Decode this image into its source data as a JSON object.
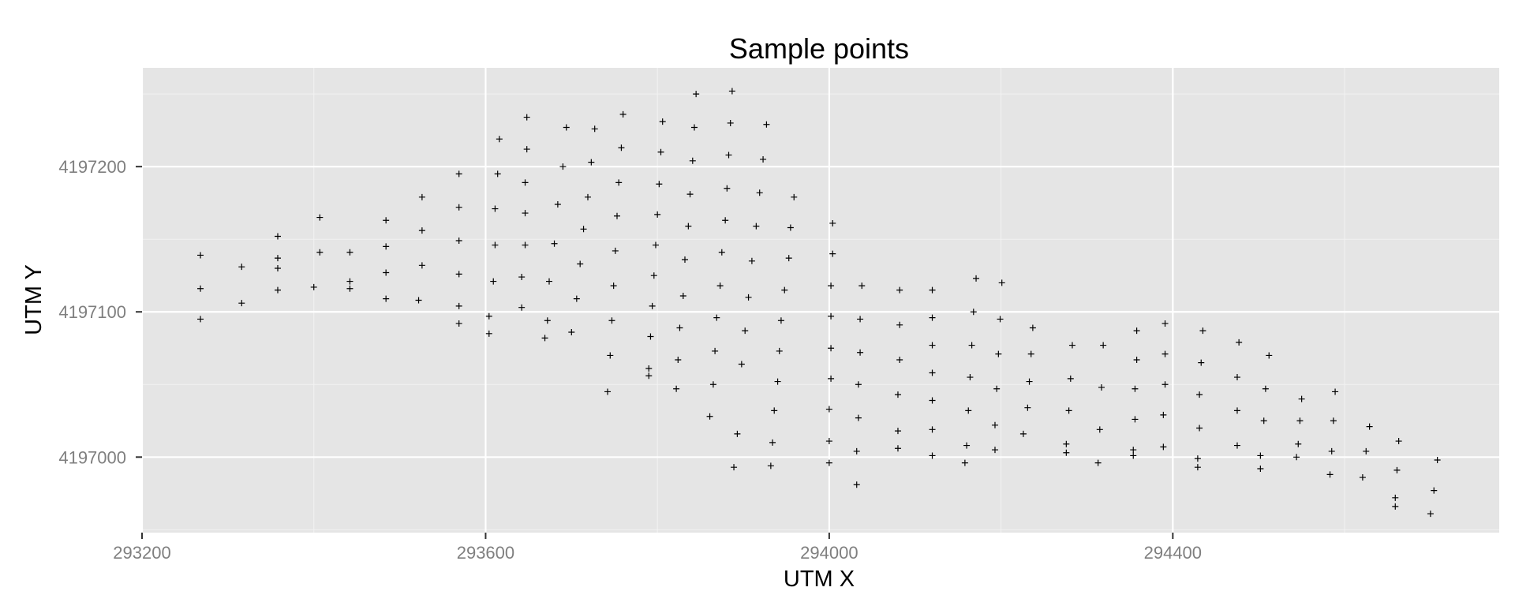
{
  "chart_data": {
    "type": "scatter",
    "title": "Sample points",
    "xlabel": "UTM X",
    "ylabel": "UTM Y",
    "xlim": [
      293200,
      294780
    ],
    "ylim": [
      4196948,
      4197268
    ],
    "x_ticks": [
      293200,
      293600,
      294000,
      294400
    ],
    "x_tick_labels": [
      "293200",
      "293600",
      "294000",
      "294400"
    ],
    "y_ticks": [
      4197000,
      4197100,
      4197200
    ],
    "y_tick_labels": [
      "4197000",
      "4197100",
      "4197200"
    ],
    "grid": true,
    "legend": "none",
    "marker": "plus",
    "colors": {
      "panel": "#e5e5e5",
      "grid_major": "#ffffff",
      "grid_minor": "#f2f2f2",
      "point": "#000000",
      "tick_label": "#7f7f7f"
    },
    "points": [
      [
        293268,
        4197139
      ],
      [
        293268,
        4197116
      ],
      [
        293268,
        4197095
      ],
      [
        293316,
        4197131
      ],
      [
        293316,
        4197106
      ],
      [
        293358,
        4197152
      ],
      [
        293358,
        4197137
      ],
      [
        293358,
        4197130
      ],
      [
        293358,
        4197115
      ],
      [
        293400,
        4197117
      ],
      [
        293407,
        4197165
      ],
      [
        293407,
        4197141
      ],
      [
        293442,
        4197141
      ],
      [
        293442,
        4197121
      ],
      [
        293442,
        4197116
      ],
      [
        293484,
        4197163
      ],
      [
        293484,
        4197145
      ],
      [
        293484,
        4197127
      ],
      [
        293484,
        4197109
      ],
      [
        293522,
        4197108
      ],
      [
        293526,
        4197179
      ],
      [
        293526,
        4197156
      ],
      [
        293526,
        4197132
      ],
      [
        293569,
        4197195
      ],
      [
        293569,
        4197172
      ],
      [
        293569,
        4197149
      ],
      [
        293569,
        4197126
      ],
      [
        293569,
        4197104
      ],
      [
        293569,
        4197092
      ],
      [
        293604,
        4197097
      ],
      [
        293604,
        4197085
      ],
      [
        293609,
        4197121
      ],
      [
        293611,
        4197146
      ],
      [
        293611,
        4197171
      ],
      [
        293614,
        4197195
      ],
      [
        293616,
        4197219
      ],
      [
        293642,
        4197124
      ],
      [
        293642,
        4197103
      ],
      [
        293646,
        4197146
      ],
      [
        293646,
        4197168
      ],
      [
        293646,
        4197189
      ],
      [
        293648,
        4197212
      ],
      [
        293648,
        4197234
      ],
      [
        293669,
        4197082
      ],
      [
        293672,
        4197094
      ],
      [
        293674,
        4197121
      ],
      [
        293680,
        4197147
      ],
      [
        293684,
        4197174
      ],
      [
        293690,
        4197200
      ],
      [
        293694,
        4197227
      ],
      [
        293700,
        4197086
      ],
      [
        293706,
        4197109
      ],
      [
        293710,
        4197133
      ],
      [
        293714,
        4197157
      ],
      [
        293719,
        4197179
      ],
      [
        293723,
        4197203
      ],
      [
        293727,
        4197226
      ],
      [
        293742,
        4197045
      ],
      [
        293745,
        4197070
      ],
      [
        293747,
        4197094
      ],
      [
        293749,
        4197118
      ],
      [
        293751,
        4197142
      ],
      [
        293753,
        4197166
      ],
      [
        293755,
        4197189
      ],
      [
        293758,
        4197213
      ],
      [
        293760,
        4197236
      ],
      [
        293790,
        4197061
      ],
      [
        293790,
        4197056
      ],
      [
        293792,
        4197083
      ],
      [
        293794,
        4197104
      ],
      [
        293796,
        4197125
      ],
      [
        293798,
        4197146
      ],
      [
        293800,
        4197167
      ],
      [
        293802,
        4197188
      ],
      [
        293804,
        4197210
      ],
      [
        293806,
        4197231
      ],
      [
        293822,
        4197047
      ],
      [
        293824,
        4197067
      ],
      [
        293826,
        4197089
      ],
      [
        293830,
        4197111
      ],
      [
        293832,
        4197136
      ],
      [
        293836,
        4197159
      ],
      [
        293838,
        4197181
      ],
      [
        293841,
        4197204
      ],
      [
        293843,
        4197227
      ],
      [
        293845,
        4197250
      ],
      [
        293861,
        4197028
      ],
      [
        293865,
        4197050
      ],
      [
        293867,
        4197073
      ],
      [
        293869,
        4197096
      ],
      [
        293873,
        4197118
      ],
      [
        293875,
        4197141
      ],
      [
        293879,
        4197163
      ],
      [
        293881,
        4197185
      ],
      [
        293883,
        4197208
      ],
      [
        293885,
        4197230
      ],
      [
        293887,
        4197252
      ],
      [
        293889,
        4196993
      ],
      [
        293893,
        4197016
      ],
      [
        293898,
        4197064
      ],
      [
        293902,
        4197087
      ],
      [
        293906,
        4197110
      ],
      [
        293910,
        4197135
      ],
      [
        293915,
        4197159
      ],
      [
        293919,
        4197182
      ],
      [
        293923,
        4197205
      ],
      [
        293927,
        4197229
      ],
      [
        293932,
        4196994
      ],
      [
        293934,
        4197010
      ],
      [
        293936,
        4197032
      ],
      [
        293940,
        4197052
      ],
      [
        293942,
        4197073
      ],
      [
        293944,
        4197094
      ],
      [
        293948,
        4197115
      ],
      [
        293953,
        4197137
      ],
      [
        293955,
        4197158
      ],
      [
        293959,
        4197179
      ],
      [
        294000,
        4196996
      ],
      [
        294000,
        4197011
      ],
      [
        294000,
        4197033
      ],
      [
        294002,
        4197054
      ],
      [
        294002,
        4197075
      ],
      [
        294002,
        4197097
      ],
      [
        294002,
        4197118
      ],
      [
        294004,
        4197140
      ],
      [
        294004,
        4197161
      ],
      [
        294032,
        4196981
      ],
      [
        294032,
        4197004
      ],
      [
        294034,
        4197027
      ],
      [
        294034,
        4197050
      ],
      [
        294036,
        4197072
      ],
      [
        294036,
        4197095
      ],
      [
        294038,
        4197118
      ],
      [
        294080,
        4197006
      ],
      [
        294080,
        4197018
      ],
      [
        294080,
        4197043
      ],
      [
        294082,
        4197067
      ],
      [
        294082,
        4197091
      ],
      [
        294082,
        4197115
      ],
      [
        294120,
        4197001
      ],
      [
        294120,
        4197019
      ],
      [
        294120,
        4197039
      ],
      [
        294120,
        4197058
      ],
      [
        294120,
        4197077
      ],
      [
        294120,
        4197096
      ],
      [
        294120,
        4197115
      ],
      [
        294158,
        4196996
      ],
      [
        294160,
        4197008
      ],
      [
        294162,
        4197032
      ],
      [
        294164,
        4197055
      ],
      [
        294166,
        4197077
      ],
      [
        294168,
        4197100
      ],
      [
        294171,
        4197123
      ],
      [
        294193,
        4197005
      ],
      [
        294193,
        4197022
      ],
      [
        294195,
        4197047
      ],
      [
        294197,
        4197071
      ],
      [
        294199,
        4197095
      ],
      [
        294201,
        4197120
      ],
      [
        294226,
        4197016
      ],
      [
        294231,
        4197034
      ],
      [
        294233,
        4197052
      ],
      [
        294235,
        4197071
      ],
      [
        294237,
        4197089
      ],
      [
        294276,
        4197003
      ],
      [
        294276,
        4197009
      ],
      [
        294279,
        4197032
      ],
      [
        294281,
        4197054
      ],
      [
        294283,
        4197077
      ],
      [
        294313,
        4196996
      ],
      [
        294315,
        4197019
      ],
      [
        294317,
        4197048
      ],
      [
        294319,
        4197077
      ],
      [
        294354,
        4197001
      ],
      [
        294354,
        4197005
      ],
      [
        294356,
        4197026
      ],
      [
        294356,
        4197047
      ],
      [
        294358,
        4197067
      ],
      [
        294358,
        4197087
      ],
      [
        294389,
        4197007
      ],
      [
        294389,
        4197029
      ],
      [
        294391,
        4197050
      ],
      [
        294391,
        4197071
      ],
      [
        294391,
        4197092
      ],
      [
        294429,
        4196993
      ],
      [
        294429,
        4196999
      ],
      [
        294431,
        4197020
      ],
      [
        294431,
        4197043
      ],
      [
        294433,
        4197065
      ],
      [
        294435,
        4197087
      ],
      [
        294475,
        4197008
      ],
      [
        294475,
        4197032
      ],
      [
        294475,
        4197055
      ],
      [
        294477,
        4197079
      ],
      [
        294502,
        4196992
      ],
      [
        294502,
        4197001
      ],
      [
        294506,
        4197025
      ],
      [
        294508,
        4197047
      ],
      [
        294512,
        4197070
      ],
      [
        294544,
        4197000
      ],
      [
        294546,
        4197009
      ],
      [
        294548,
        4197025
      ],
      [
        294550,
        4197040
      ],
      [
        294583,
        4196988
      ],
      [
        294585,
        4197004
      ],
      [
        294587,
        4197025
      ],
      [
        294589,
        4197045
      ],
      [
        294621,
        4196986
      ],
      [
        294625,
        4197004
      ],
      [
        294629,
        4197021
      ],
      [
        294659,
        4196966
      ],
      [
        294659,
        4196972
      ],
      [
        294661,
        4196991
      ],
      [
        294663,
        4197011
      ],
      [
        294700,
        4196961
      ],
      [
        294704,
        4196977
      ],
      [
        294708,
        4196998
      ]
    ]
  }
}
